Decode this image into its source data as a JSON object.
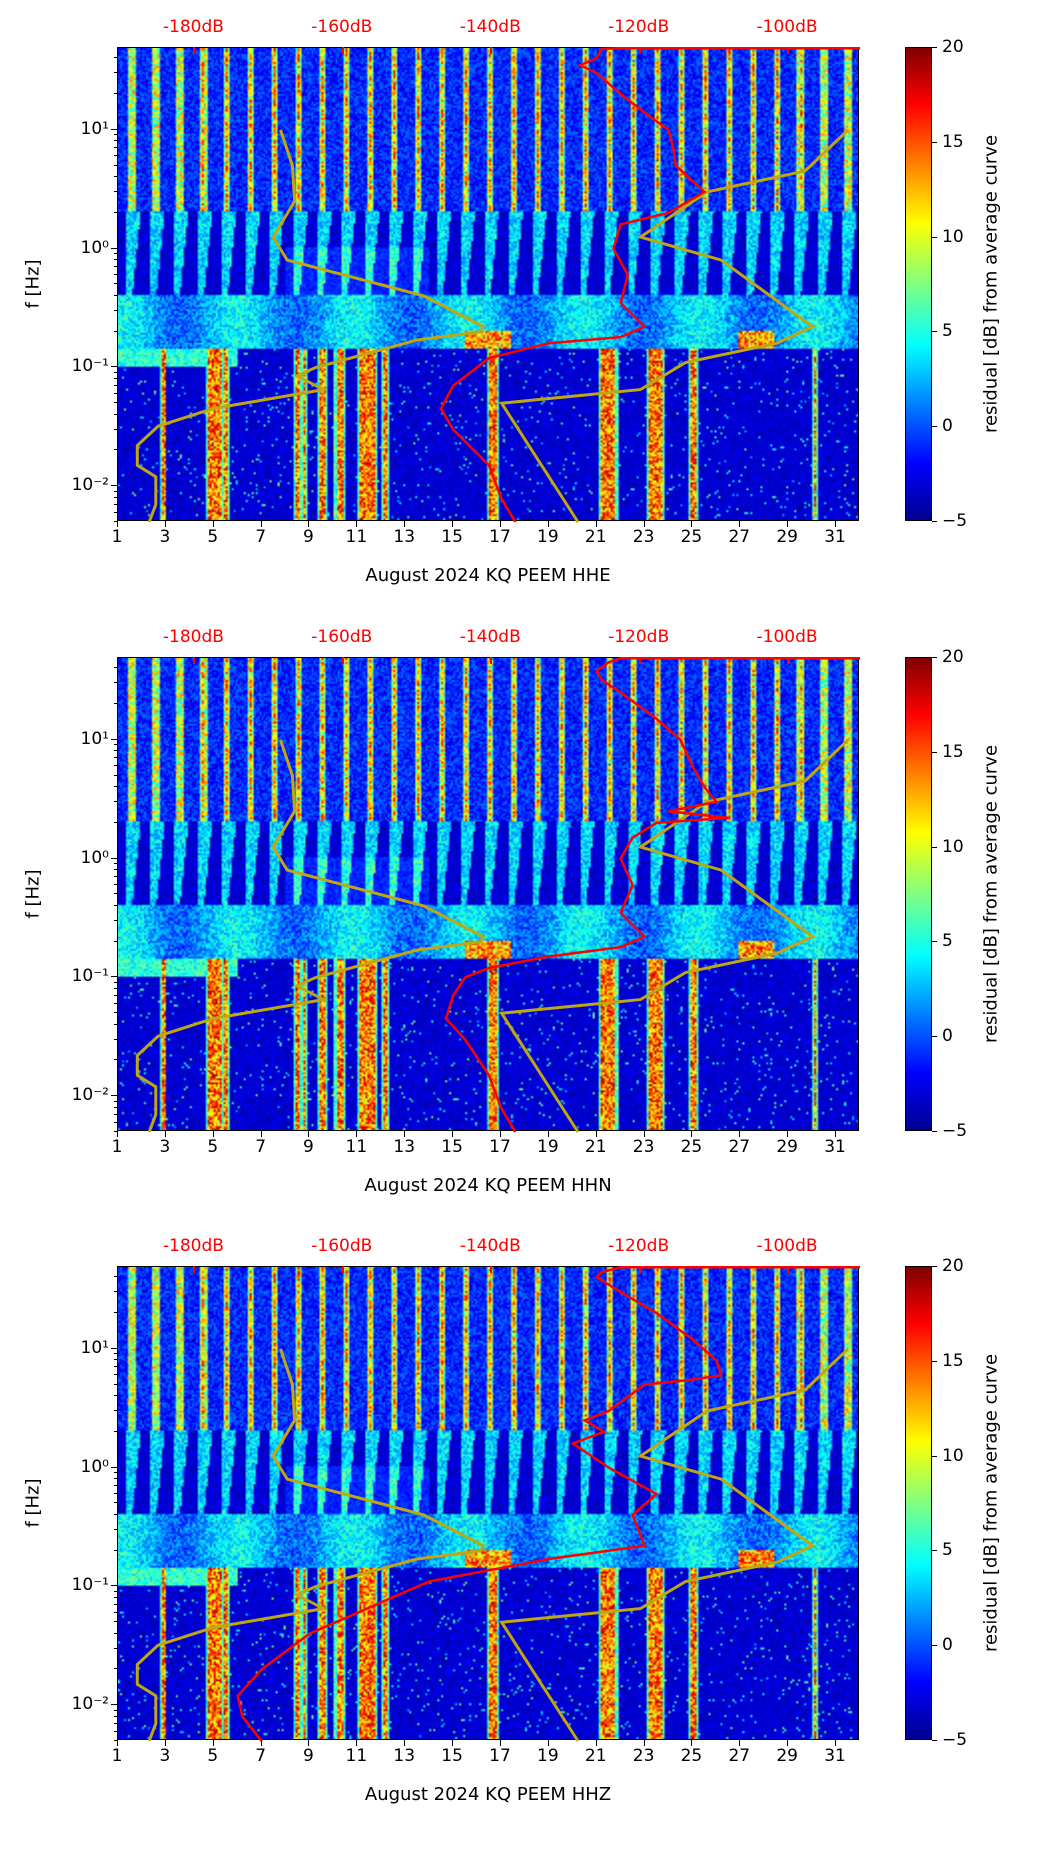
{
  "chart_data": [
    {
      "type": "heatmap",
      "title": "",
      "xlabel": "August 2024 KQ PEEM  HHE",
      "ylabel": "f [Hz]",
      "colorbar_label": "residual [dB] from average curve",
      "xlim": [
        1,
        32
      ],
      "ylim": [
        0.005,
        48.8
      ],
      "yscale": "log",
      "clim": [
        -5,
        20
      ],
      "colormap": "jet",
      "red_curve": [
        [
          48.5,
          32
        ],
        [
          48.5,
          22
        ],
        [
          48,
          21.2
        ],
        [
          40,
          21
        ],
        [
          35,
          20.3
        ],
        [
          30,
          21
        ],
        [
          20,
          22
        ],
        [
          13,
          23.2
        ],
        [
          10,
          24
        ],
        [
          7,
          24.2
        ],
        [
          5,
          24.3
        ],
        [
          3,
          25.5
        ],
        [
          2,
          24
        ],
        [
          1.6,
          22
        ],
        [
          1,
          21.7
        ],
        [
          0.6,
          22.3
        ],
        [
          0.35,
          22
        ],
        [
          0.22,
          23
        ],
        [
          0.18,
          22
        ],
        [
          0.16,
          19
        ],
        [
          0.12,
          16.5
        ],
        [
          0.1,
          16
        ],
        [
          0.07,
          15
        ],
        [
          0.045,
          14.5
        ],
        [
          0.03,
          15
        ],
        [
          0.015,
          16.5
        ],
        [
          0.008,
          17
        ],
        [
          0.005,
          17.6
        ]
      ]
    },
    {
      "type": "heatmap",
      "title": "",
      "xlabel": "August 2024 KQ PEEM  HHN",
      "ylabel": "f [Hz]",
      "colorbar_label": "residual [dB] from average curve",
      "xlim": [
        1,
        32
      ],
      "ylim": [
        0.005,
        48.8
      ],
      "yscale": "log",
      "clim": [
        -5,
        20
      ],
      "colormap": "jet",
      "red_curve": [
        [
          48.5,
          32
        ],
        [
          48.5,
          22
        ],
        [
          45,
          21.5
        ],
        [
          38,
          21
        ],
        [
          32,
          21.2
        ],
        [
          25,
          22
        ],
        [
          15,
          23.5
        ],
        [
          10,
          24.5
        ],
        [
          6,
          25
        ],
        [
          4,
          25.5
        ],
        [
          3,
          26
        ],
        [
          2.5,
          24
        ],
        [
          2.2,
          26.5
        ],
        [
          2,
          23.5
        ],
        [
          1.5,
          22.5
        ],
        [
          1,
          22
        ],
        [
          0.6,
          22.5
        ],
        [
          0.35,
          22
        ],
        [
          0.22,
          23
        ],
        [
          0.18,
          22
        ],
        [
          0.15,
          19
        ],
        [
          0.12,
          16.5
        ],
        [
          0.1,
          15.5
        ],
        [
          0.07,
          15
        ],
        [
          0.045,
          14.7
        ],
        [
          0.03,
          15.5
        ],
        [
          0.015,
          16.5
        ],
        [
          0.008,
          17
        ],
        [
          0.005,
          17.6
        ]
      ]
    },
    {
      "type": "heatmap",
      "title": "",
      "xlabel": "August 2024 KQ PEEM  HHZ",
      "ylabel": "f [Hz]",
      "colorbar_label": "residual [dB] from average curve",
      "xlim": [
        1,
        32
      ],
      "ylim": [
        0.005,
        48.8
      ],
      "yscale": "log",
      "clim": [
        -5,
        20
      ],
      "colormap": "jet",
      "red_curve": [
        [
          48.5,
          32
        ],
        [
          48.5,
          22
        ],
        [
          44,
          21.2
        ],
        [
          40,
          21
        ],
        [
          30,
          22
        ],
        [
          20,
          23.5
        ],
        [
          12,
          25
        ],
        [
          8,
          26
        ],
        [
          6,
          26.2
        ],
        [
          5.5,
          25
        ],
        [
          5,
          23
        ],
        [
          3,
          21.5
        ],
        [
          2.5,
          20.5
        ],
        [
          2,
          21.3
        ],
        [
          1.6,
          20
        ],
        [
          1,
          21.5
        ],
        [
          0.6,
          23.5
        ],
        [
          0.4,
          22.5
        ],
        [
          0.22,
          23
        ],
        [
          0.17,
          19
        ],
        [
          0.11,
          14
        ],
        [
          0.09,
          13
        ],
        [
          0.06,
          11
        ],
        [
          0.04,
          9
        ],
        [
          0.02,
          7
        ],
        [
          0.012,
          6
        ],
        [
          0.008,
          6.2
        ],
        [
          0.005,
          7
        ]
      ]
    }
  ],
  "shared": {
    "x_ticks": [
      "1",
      "3",
      "5",
      "7",
      "9",
      "11",
      "13",
      "15",
      "17",
      "19",
      "21",
      "23",
      "25",
      "27",
      "29",
      "31"
    ],
    "y_ticks": [
      {
        "v": 10,
        "label": "10¹"
      },
      {
        "v": 1,
        "label": "10⁰"
      },
      {
        "v": 0.1,
        "label": "10⁻¹"
      },
      {
        "v": 0.01,
        "label": "10⁻²"
      }
    ],
    "colorbar_ticks": [
      "20",
      "15",
      "10",
      "5",
      "0",
      "−5"
    ],
    "top_axis": {
      "unit": "dB",
      "range": [
        -190.3,
        -90.3
      ],
      "ticks": [
        "-180dB",
        "-160dB",
        "-140dB",
        "-120dB",
        "-100dB"
      ],
      "tick_values": [
        -180,
        -160,
        -140,
        -120,
        -100
      ],
      "color": "#ff0000"
    },
    "low_noise_model": [
      [
        10,
        -168.4
      ],
      [
        5,
        -166.8
      ],
      [
        2.5,
        -166.5
      ],
      [
        1.25,
        -169.4
      ],
      [
        0.8,
        -167.5
      ],
      [
        0.4,
        -149.1
      ],
      [
        0.22,
        -141.1
      ],
      [
        0.2,
        -141.4
      ],
      [
        0.17,
        -150
      ],
      [
        0.1,
        -163.6
      ],
      [
        0.085,
        -166.2
      ],
      [
        0.065,
        -162.6
      ],
      [
        0.045,
        -177.5
      ],
      [
        0.032,
        -184.9
      ],
      [
        0.022,
        -187.7
      ],
      [
        0.015,
        -187.7
      ],
      [
        0.012,
        -185.2
      ],
      [
        0.007,
        -185.2
      ],
      [
        0.005,
        -186.1
      ]
    ],
    "high_noise_model": [
      [
        10,
        -91.9
      ],
      [
        4.5,
        -97.7
      ],
      [
        3,
        -110.9
      ],
      [
        1.25,
        -119.9
      ],
      [
        0.8,
        -109
      ],
      [
        0.22,
        -96.7
      ],
      [
        0.16,
        -101.5
      ],
      [
        0.11,
        -113.8
      ],
      [
        0.065,
        -119.9
      ],
      [
        0.05,
        -138.6
      ],
      [
        0.005,
        -128.3
      ]
    ],
    "noise_model_color": "#bfa613",
    "red_curve_color": "#ff0000"
  }
}
